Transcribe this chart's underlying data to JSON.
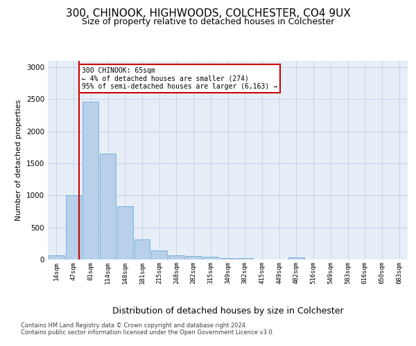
{
  "title1": "300, CHINOOK, HIGHWOODS, COLCHESTER, CO4 9UX",
  "title2": "Size of property relative to detached houses in Colchester",
  "xlabel": "Distribution of detached houses by size in Colchester",
  "ylabel": "Number of detached properties",
  "bar_labels": [
    "14sqm",
    "47sqm",
    "81sqm",
    "114sqm",
    "148sqm",
    "181sqm",
    "215sqm",
    "248sqm",
    "282sqm",
    "315sqm",
    "349sqm",
    "382sqm",
    "415sqm",
    "449sqm",
    "482sqm",
    "516sqm",
    "549sqm",
    "583sqm",
    "616sqm",
    "650sqm",
    "683sqm"
  ],
  "bar_values": [
    60,
    1000,
    2460,
    1650,
    830,
    310,
    135,
    60,
    55,
    45,
    20,
    25,
    5,
    0,
    30,
    0,
    0,
    0,
    0,
    0,
    0
  ],
  "bar_color": "#b8d0ea",
  "bar_edge_color": "#6aaad4",
  "grid_color": "#c8d4e8",
  "background_color": "#e8eef8",
  "red_line_x": 1.33,
  "annotation_text": "300 CHINOOK: 65sqm\n← 4% of detached houses are smaller (274)\n95% of semi-detached houses are larger (6,163) →",
  "annotation_box_color": "#ffffff",
  "annotation_edge_color": "#cc0000",
  "footer1": "Contains HM Land Registry data © Crown copyright and database right 2024.",
  "footer2": "Contains public sector information licensed under the Open Government Licence v3.0.",
  "ylim": [
    0,
    3100
  ],
  "title1_fontsize": 11,
  "title2_fontsize": 9,
  "xlabel_fontsize": 9,
  "ylabel_fontsize": 8
}
